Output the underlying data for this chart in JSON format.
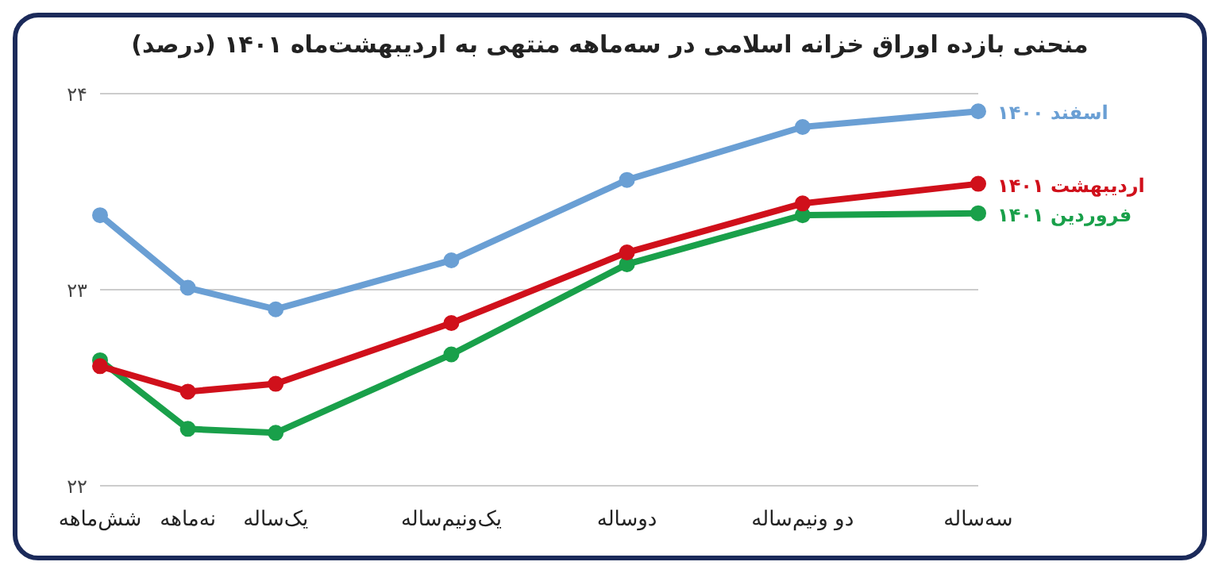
{
  "chart_data": {
    "type": "line",
    "title": "منحنی بازده اوراق خزانه اسلامی در سه‌ماهه منتهی به اردیبهشت‌ماه ۱۴۰۱ (درصد)",
    "categories": [
      "شش‌ماهه",
      "نه‌ماهه",
      "یک‌ساله",
      null,
      "یک‌ونیم‌ساله",
      null,
      "دوساله",
      null,
      "دو ونیم‌ساله",
      null,
      "سه‌ساله"
    ],
    "ylim": [
      22,
      24
    ],
    "yticks": [
      {
        "value": 22,
        "label": "۲۲"
      },
      {
        "value": 23,
        "label": "۲۳"
      },
      {
        "value": 24,
        "label": "۲۴"
      }
    ],
    "grid": "y",
    "marker": "circle",
    "line_style": "solid",
    "series": [
      {
        "name": "اسفند ۱۴۰۰",
        "color": "#6a9fd4",
        "values": [
          23.38,
          23.01,
          22.9,
          null,
          23.15,
          null,
          23.56,
          null,
          23.83,
          null,
          23.91
        ]
      },
      {
        "name": "اردیبهشت ۱۴۰۱",
        "color": "#d0101b",
        "values": [
          22.61,
          22.48,
          22.52,
          null,
          22.83,
          null,
          23.19,
          null,
          23.44,
          null,
          23.54
        ]
      },
      {
        "name": "فروردین ۱۴۰۱",
        "color": "#19a04a",
        "values": [
          22.64,
          22.29,
          22.27,
          null,
          22.67,
          null,
          23.13,
          null,
          23.38,
          null,
          23.39
        ]
      }
    ]
  }
}
